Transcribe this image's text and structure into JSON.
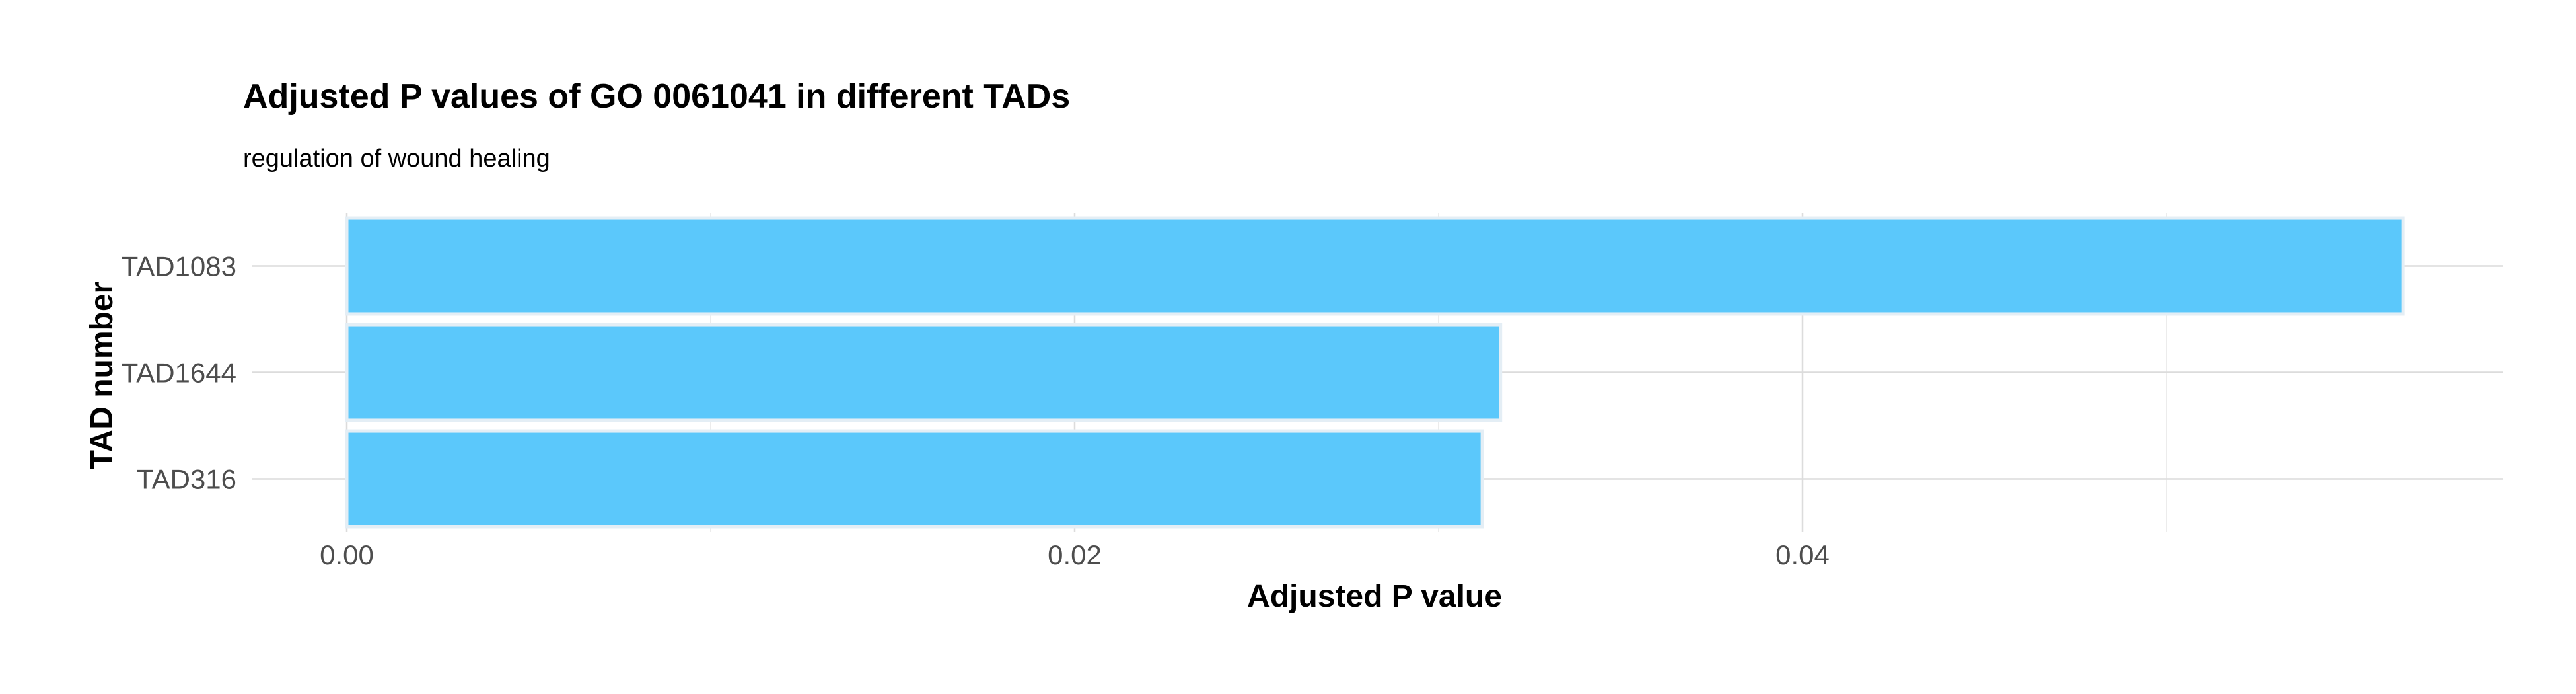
{
  "chart_data": {
    "type": "bar",
    "orientation": "horizontal",
    "title": "Adjusted P values of GO 0061041 in different TADs",
    "subtitle": "regulation of wound healing",
    "xlabel": "Adjusted P value",
    "ylabel": "TAD number",
    "categories": [
      "TAD1083",
      "TAD1644",
      "TAD316"
    ],
    "values": [
      0.0565,
      0.0317,
      0.0312
    ],
    "xlim": [
      0,
      0.06
    ],
    "xticks": [
      0.0,
      0.02,
      0.04
    ],
    "xtick_labels": [
      "0.00",
      "0.02",
      "0.04"
    ],
    "grid": true,
    "legend": "none",
    "bar_fill": "#5bc8fb",
    "bar_outline": "#e4eef5"
  }
}
